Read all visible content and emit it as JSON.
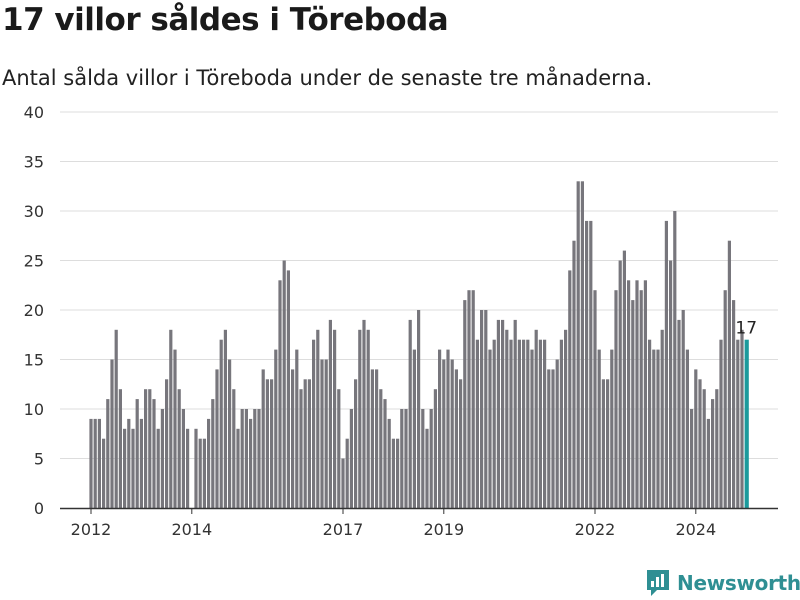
{
  "title": "17 villor såldes i Töreboda",
  "subtitle": "Antal sålda villor i Töreboda under de senaste tre månaderna.",
  "brand": {
    "name": "Newsworthy",
    "icon": "newsworthy-logo-icon",
    "color": "#2f8f93"
  },
  "colors": {
    "bar": "#77767c",
    "highlight": "#1c9a9c",
    "grid": "#dddddd",
    "axis": "#333333"
  },
  "chart_data": {
    "type": "bar",
    "ylim": [
      0,
      40
    ],
    "y_ticks": [
      0,
      5,
      10,
      15,
      20,
      25,
      30,
      35,
      40
    ],
    "x_tick_labels": [
      {
        "label": "2012",
        "index": 0
      },
      {
        "label": "2014",
        "index": 24
      },
      {
        "label": "2017",
        "index": 60
      },
      {
        "label": "2019",
        "index": 84
      },
      {
        "label": "2022",
        "index": 120
      },
      {
        "label": "2024",
        "index": 144
      }
    ],
    "grid": true,
    "values": [
      9,
      9,
      9,
      7,
      11,
      15,
      18,
      12,
      8,
      9,
      8,
      11,
      9,
      12,
      12,
      11,
      8,
      10,
      13,
      18,
      16,
      12,
      10,
      8,
      0,
      8,
      7,
      7,
      9,
      11,
      14,
      17,
      18,
      15,
      12,
      8,
      10,
      10,
      9,
      10,
      10,
      14,
      13,
      13,
      16,
      23,
      25,
      24,
      14,
      16,
      12,
      13,
      13,
      17,
      18,
      15,
      15,
      19,
      18,
      12,
      5,
      7,
      10,
      13,
      18,
      19,
      18,
      14,
      14,
      12,
      11,
      9,
      7,
      7,
      10,
      10,
      19,
      16,
      20,
      10,
      8,
      10,
      12,
      16,
      15,
      16,
      15,
      14,
      13,
      21,
      22,
      22,
      17,
      20,
      20,
      16,
      17,
      19,
      19,
      18,
      17,
      19,
      17,
      17,
      17,
      16,
      18,
      17,
      17,
      14,
      14,
      15,
      17,
      18,
      24,
      27,
      33,
      33,
      29,
      29,
      22,
      16,
      13,
      13,
      16,
      22,
      25,
      26,
      23,
      21,
      23,
      22,
      23,
      17,
      16,
      16,
      18,
      29,
      25,
      30,
      19,
      20,
      16,
      10,
      14,
      13,
      12,
      9,
      11,
      12,
      17,
      22,
      27,
      21,
      17,
      18,
      17
    ],
    "highlight_index": 156,
    "highlight_label": "17"
  }
}
